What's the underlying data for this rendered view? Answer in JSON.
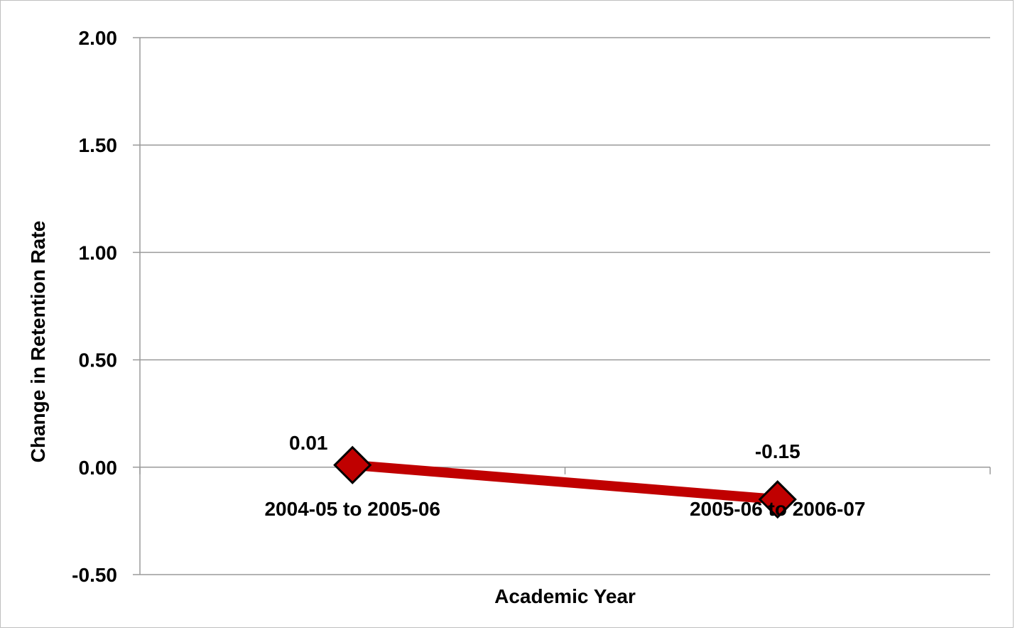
{
  "chart_data": {
    "type": "line",
    "categories": [
      "2004-05 to 2005-06",
      "2005-06 to 2006-07"
    ],
    "series": [
      {
        "values": [
          0.01,
          -0.15
        ],
        "data_labels": [
          "0.01",
          "-0.15"
        ]
      }
    ],
    "title": "",
    "xlabel": "Academic Year",
    "ylabel": "Change in Retention Rate",
    "ylim": [
      -0.5,
      2.0
    ],
    "yticks": [
      2.0,
      1.5,
      1.0,
      0.5,
      0.0,
      -0.5
    ],
    "ytick_labels": [
      "2.00",
      "1.50",
      "1.00",
      "0.50",
      "0.00",
      "-0.50"
    ],
    "grid": true,
    "legend": "none",
    "colors": {
      "line": "#c00000",
      "marker_fill": "#c00000",
      "marker_edge": "#000000",
      "grid": "#9a9a9a"
    }
  }
}
